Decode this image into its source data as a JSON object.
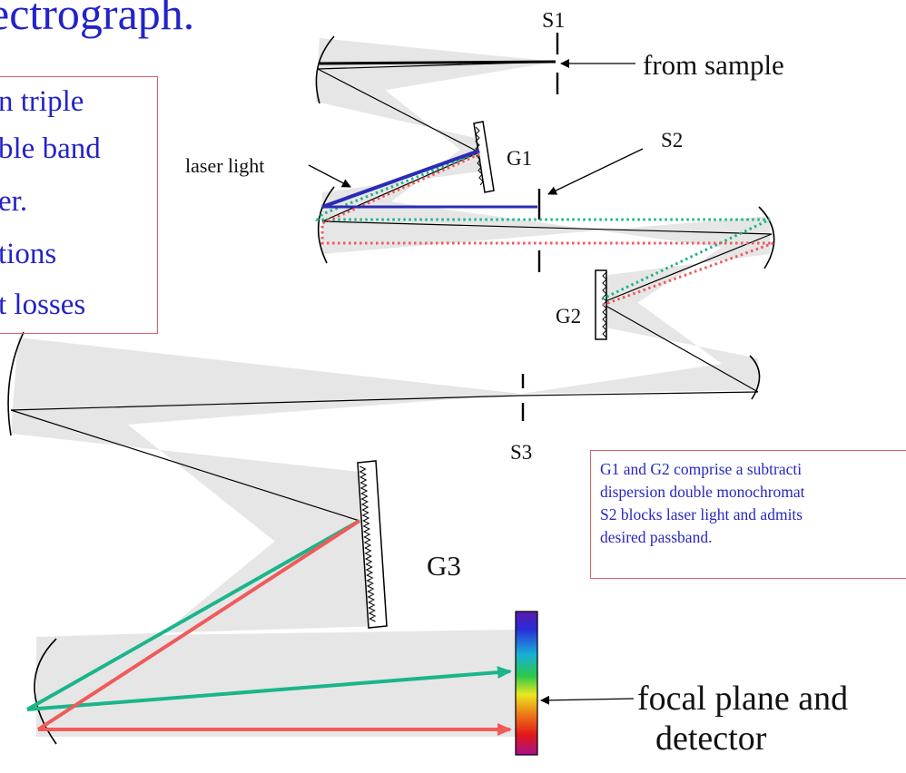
{
  "title_fragment": "ectrograph.",
  "left_box_lines": [
    "n triple",
    "ble band",
    "er.",
    "tions",
    "t losses"
  ],
  "labels": {
    "s1": "S1",
    "s2": "S2",
    "s3": "S3",
    "g1": "G1",
    "g2": "G2",
    "g3": "G3",
    "from_sample": "from sample",
    "laser_light": "laser light",
    "focal_plane_1": "focal plane and",
    "focal_plane_2": "detector"
  },
  "note_lines": [
    "G1 and G2 comprise a subtracti",
    "dispersion double monochromat",
    "S2 blocks laser light and admits",
    "desired passband."
  ],
  "colors": {
    "title_text": "#2323c8",
    "beam_fill": "#e6e6e6",
    "laser_ray": "#2b2bb5",
    "green_ray": "#1ab58a",
    "red_ray": "#f05a5a",
    "box_border": "#e06060",
    "note_text": "#2828c0"
  }
}
